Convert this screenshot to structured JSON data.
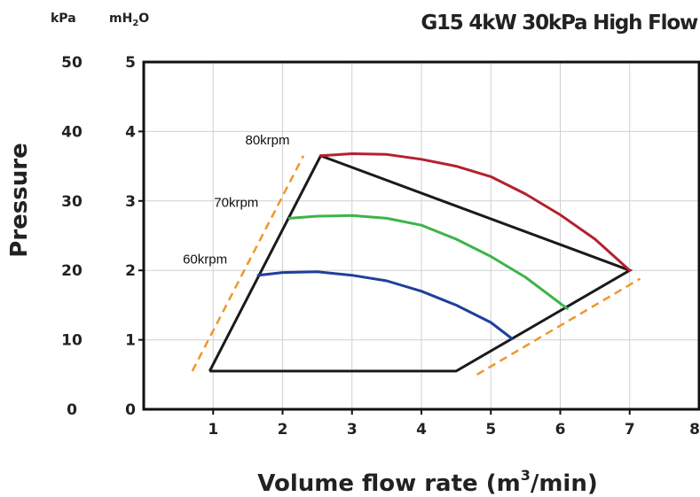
{
  "chart_data": {
    "type": "line",
    "title": "G15 4kW 30kPa High Flow",
    "xlabel": "Volume flow rate (m",
    "xlabel_sup": "3",
    "xlabel_tail": "/min)",
    "ylabel": "Pressure",
    "unit_left": "kPa",
    "unit_right_main": "mH",
    "unit_right_sub": "2",
    "unit_right_tail": "O",
    "xlim": [
      0,
      8
    ],
    "ylim": [
      0,
      5
    ],
    "x_ticks": [
      "1",
      "2",
      "3",
      "4",
      "5",
      "6",
      "7",
      "8"
    ],
    "y_ticks_right": [
      "0",
      "1",
      "2",
      "3",
      "4",
      "5"
    ],
    "y_ticks_left": [
      "0",
      "10",
      "20",
      "30",
      "40",
      "50"
    ],
    "grid": true,
    "envelope": {
      "color": "#1a1a1a",
      "x": [
        0.95,
        2.55,
        7.0,
        4.5,
        0.95
      ],
      "y": [
        0.55,
        3.65,
        2.0,
        0.55,
        0.55
      ]
    },
    "series": [
      {
        "name": "80krpm",
        "color": "#b5202e",
        "x": [
          2.55,
          3.0,
          3.5,
          4.0,
          4.5,
          5.0,
          5.5,
          6.0,
          6.5,
          7.0
        ],
        "y": [
          3.65,
          3.68,
          3.67,
          3.6,
          3.5,
          3.35,
          3.1,
          2.8,
          2.45,
          2.0
        ]
      },
      {
        "name": "70krpm",
        "color": "#3cb44a",
        "x": [
          2.1,
          2.5,
          3.0,
          3.5,
          4.0,
          4.5,
          5.0,
          5.5,
          6.1
        ],
        "y": [
          2.75,
          2.78,
          2.79,
          2.75,
          2.65,
          2.45,
          2.2,
          1.9,
          1.45
        ]
      },
      {
        "name": "60krpm",
        "color": "#1f3f99",
        "x": [
          1.65,
          2.0,
          2.5,
          3.0,
          3.5,
          4.0,
          4.5,
          5.0,
          5.3
        ],
        "y": [
          1.93,
          1.97,
          1.98,
          1.93,
          1.85,
          1.7,
          1.5,
          1.25,
          1.02
        ]
      }
    ],
    "guides": [
      {
        "color": "#f0962a",
        "x": [
          0.7,
          2.3
        ],
        "y": [
          0.55,
          3.65
        ]
      },
      {
        "color": "#f0962a",
        "x": [
          4.8,
          7.15
        ],
        "y": [
          0.5,
          1.88
        ]
      }
    ]
  }
}
